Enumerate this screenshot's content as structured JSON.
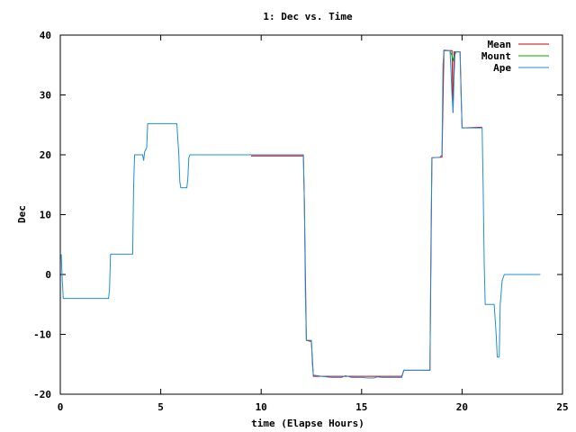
{
  "chart_data": {
    "type": "line",
    "title": "1: Dec vs. Time",
    "xlabel": "time (Elapse Hours)",
    "ylabel": "Dec",
    "xlim": [
      0,
      25
    ],
    "ylim": [
      -20,
      40
    ],
    "xticks": [
      0,
      5,
      10,
      15,
      20,
      25
    ],
    "yticks": [
      -20,
      -10,
      0,
      10,
      20,
      30,
      40
    ],
    "xtick_labels": [
      "0",
      "5",
      "10",
      "15",
      "20",
      "25"
    ],
    "ytick_labels": [
      "-20",
      "-10",
      "0",
      "10",
      "20",
      "30",
      "40"
    ],
    "grid": false,
    "legend_position": "top-right",
    "colors": {
      "Mean": "#cc0000",
      "Mount": "#00aa00",
      "Ape": "#1f8fd6"
    },
    "series": [
      {
        "name": "Mean",
        "points": [
          [
            9.5,
            19.8
          ],
          [
            12.1,
            19.8
          ],
          [
            12.15,
            12
          ],
          [
            12.25,
            -11
          ],
          [
            12.5,
            -11.2
          ],
          [
            12.6,
            -17
          ],
          [
            17,
            -17
          ],
          [
            17.1,
            -16
          ],
          [
            18.4,
            -16
          ],
          [
            18.5,
            19.5
          ],
          [
            19,
            19.6
          ],
          [
            19.1,
            37.4
          ],
          [
            19.5,
            37.4
          ],
          [
            19.55,
            27
          ],
          [
            19.6,
            37.2
          ],
          [
            19.9,
            37.2
          ],
          [
            20,
            24.5
          ],
          [
            21,
            24.6
          ]
        ]
      },
      {
        "name": "Mount",
        "points": [
          [
            19.4,
            37.3
          ],
          [
            19.5,
            36.6
          ],
          [
            19.55,
            35.8
          ],
          [
            19.7,
            37.2
          ]
        ]
      },
      {
        "name": "Ape",
        "points": [
          [
            0,
            3.5
          ],
          [
            0.05,
            3.3
          ],
          [
            0.1,
            -1
          ],
          [
            0.15,
            -4
          ],
          [
            2.4,
            -4
          ],
          [
            2.45,
            -2.5
          ],
          [
            2.5,
            3.4
          ],
          [
            3.6,
            3.4
          ],
          [
            3.65,
            15
          ],
          [
            3.7,
            20
          ],
          [
            4.1,
            20
          ],
          [
            4.15,
            19
          ],
          [
            4.2,
            20.5
          ],
          [
            4.3,
            21.2
          ],
          [
            4.35,
            25.2
          ],
          [
            5.8,
            25.2
          ],
          [
            5.9,
            20
          ],
          [
            5.95,
            15.5
          ],
          [
            6.0,
            14.5
          ],
          [
            6.3,
            14.5
          ],
          [
            6.35,
            16
          ],
          [
            6.4,
            19.5
          ],
          [
            6.45,
            20
          ],
          [
            12.1,
            20
          ],
          [
            12.15,
            12
          ],
          [
            12.2,
            -3
          ],
          [
            12.25,
            -11
          ],
          [
            12.5,
            -11
          ],
          [
            12.55,
            -15
          ],
          [
            12.6,
            -16.8
          ],
          [
            13,
            -17
          ],
          [
            13.5,
            -17.2
          ],
          [
            14,
            -17.2
          ],
          [
            14.2,
            -16.9
          ],
          [
            14.5,
            -17.2
          ],
          [
            15.0,
            -17.2
          ],
          [
            15.3,
            -17.3
          ],
          [
            15.6,
            -17.3
          ],
          [
            15.8,
            -17.1
          ],
          [
            16.0,
            -17.2
          ],
          [
            16.5,
            -17.2
          ],
          [
            17,
            -17.2
          ],
          [
            17.1,
            -16
          ],
          [
            18.4,
            -16
          ],
          [
            18.45,
            5
          ],
          [
            18.5,
            19.5
          ],
          [
            18.9,
            19.6
          ],
          [
            19.0,
            20
          ],
          [
            19.05,
            35
          ],
          [
            19.1,
            37.5
          ],
          [
            19.4,
            37.4
          ],
          [
            19.45,
            34
          ],
          [
            19.5,
            30
          ],
          [
            19.55,
            27
          ],
          [
            19.6,
            33
          ],
          [
            19.65,
            37.2
          ],
          [
            19.9,
            37.2
          ],
          [
            19.95,
            30
          ],
          [
            20,
            24.5
          ],
          [
            21,
            24.5
          ],
          [
            21.05,
            15
          ],
          [
            21.1,
            2
          ],
          [
            21.15,
            -5
          ],
          [
            21.6,
            -5
          ],
          [
            21.7,
            -10
          ],
          [
            21.75,
            -13.8
          ],
          [
            21.85,
            -13.8
          ],
          [
            21.9,
            -5
          ],
          [
            22.0,
            -1
          ],
          [
            22.1,
            0
          ],
          [
            23.9,
            0
          ]
        ]
      }
    ]
  }
}
